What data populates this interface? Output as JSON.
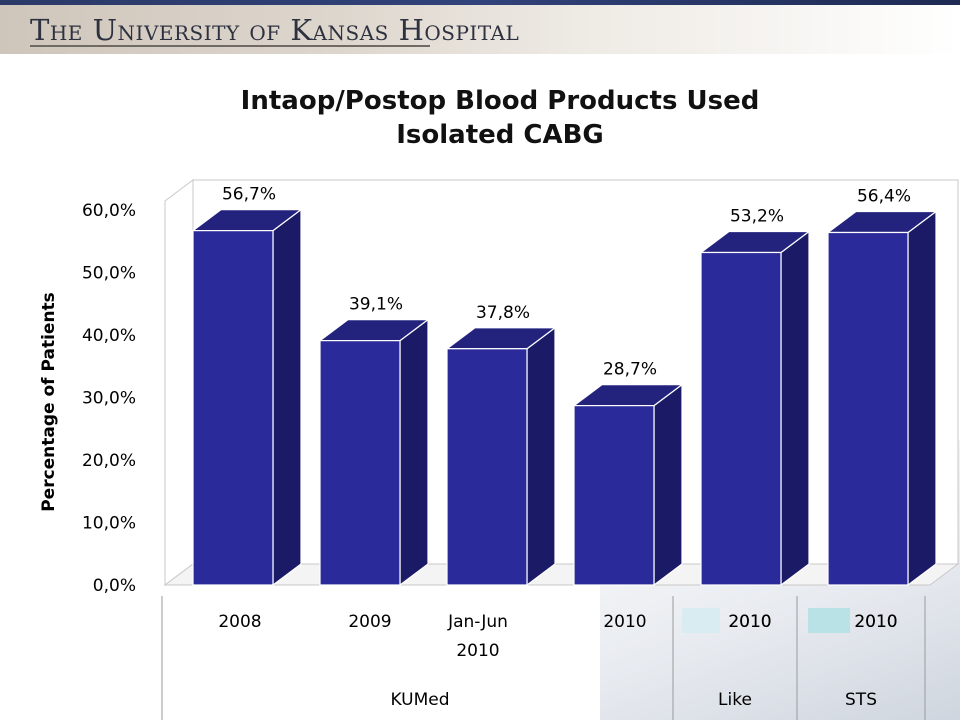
{
  "header": {
    "logo_text": "The University of Kansas Hospital"
  },
  "chart_data": {
    "type": "bar",
    "title_lines": [
      "Intaop/Postop Blood Products Used",
      "Isolated CABG"
    ],
    "ylabel": "Percentage of Patients",
    "xlabel": "",
    "ylim": [
      0,
      60
    ],
    "yticks": [
      "0,0%",
      "10,0%",
      "20,0%",
      "30,0%",
      "40,0%",
      "50,0%",
      "60,0%"
    ],
    "ytick_values": [
      0,
      10,
      20,
      30,
      40,
      50,
      60
    ],
    "categories": [
      "2008",
      "2009",
      "Jan-Jun 2010",
      "2010",
      "2010",
      "2010"
    ],
    "category_lines": [
      [
        "2008"
      ],
      [
        "2009"
      ],
      [
        "Jan-Jun",
        "2010"
      ],
      [
        "2010"
      ],
      [
        "2010"
      ],
      [
        "2010"
      ]
    ],
    "values": [
      56.7,
      39.1,
      37.8,
      28.7,
      53.2,
      56.4
    ],
    "data_labels": [
      "56,7%",
      "39,1%",
      "37,8%",
      "28,7%",
      "53,2%",
      "56,4%"
    ],
    "groups": [
      {
        "label": "KUMed",
        "count": 4
      },
      {
        "label": "Like",
        "count": 1
      },
      {
        "label": "STS",
        "count": 1
      }
    ],
    "grid": false,
    "legend": "none",
    "colors": {
      "bar_front": "#2a2a9a",
      "bar_side": "#1a1a66",
      "bar_top": "#23237e",
      "wall": "#ffffff",
      "outline": "#c8c8c8",
      "legend_swatch_1": "#d9ecf2",
      "legend_swatch_2": "#b9e2e6"
    }
  }
}
